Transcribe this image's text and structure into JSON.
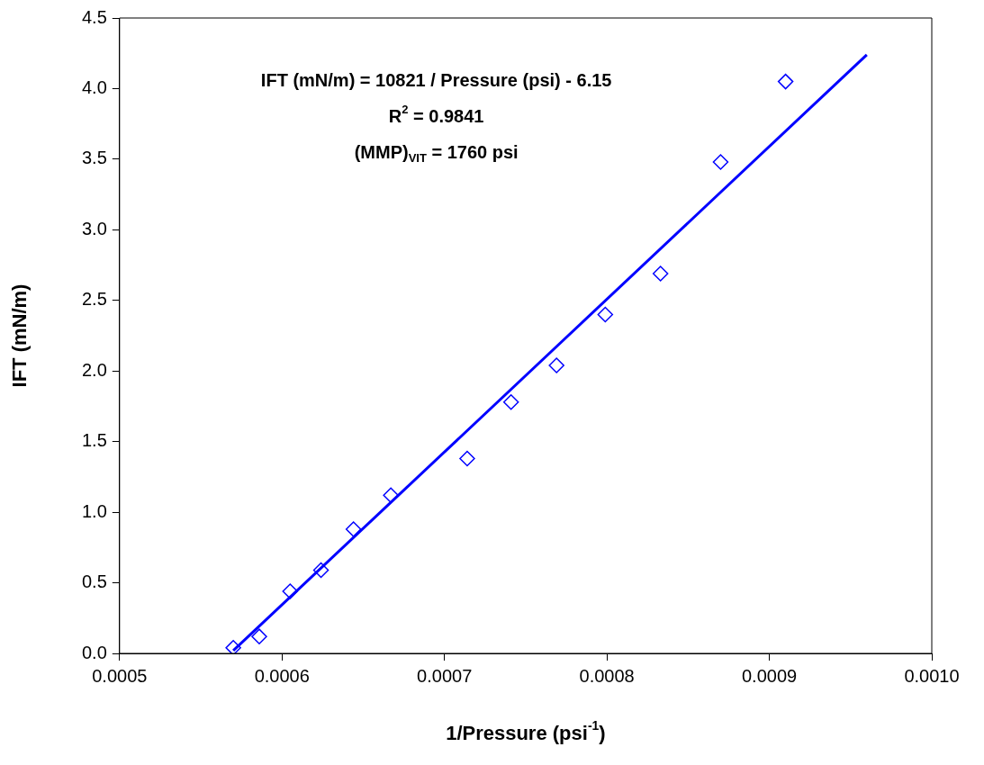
{
  "chart_data": {
    "type": "scatter",
    "xlabel": "1/Pressure (psi$^{-1}$)",
    "ylabel": "IFT (mN/m)",
    "annotations": [
      "IFT (mN/m) = 10821 / Pressure (psi) - 6.15",
      "R$^{2}$ = 0.9841",
      "(MMP)$_{VIT}$ = 1760 psi"
    ],
    "xlim": [
      0.0005,
      0.001
    ],
    "xticks": [
      {
        "value": 0.0005,
        "label": "0.0005"
      },
      {
        "value": 0.0006,
        "label": "0.0006"
      },
      {
        "value": 0.0007,
        "label": "0.0007"
      },
      {
        "value": 0.0008,
        "label": "0.0008"
      },
      {
        "value": 0.0009,
        "label": "0.0009"
      },
      {
        "value": 0.001,
        "label": "0.0010"
      }
    ],
    "ylim": [
      0,
      4.5
    ],
    "yticks": [
      {
        "value": 0,
        "label": "0.0"
      },
      {
        "value": 0.5,
        "label": "0.5"
      },
      {
        "value": 1,
        "label": "1.0"
      },
      {
        "value": 1.5,
        "label": "1.5"
      },
      {
        "value": 2,
        "label": "2.0"
      },
      {
        "value": 2.5,
        "label": "2.5"
      },
      {
        "value": 3,
        "label": "3.0"
      },
      {
        "value": 3.5,
        "label": "3.5"
      },
      {
        "value": 4,
        "label": "4.0"
      },
      {
        "value": 4.5,
        "label": "4.5"
      }
    ],
    "grid": false,
    "legend": false,
    "series": [
      {
        "type": "scatter",
        "color": "#0000ff",
        "marker": "diamond",
        "x": [
          0.00057,
          0.000586,
          0.000605,
          0.000624,
          0.000644,
          0.000667,
          0.000714,
          0.000741,
          0.000769,
          0.000799,
          0.000833,
          0.00087,
          0.00091
        ],
        "values": [
          0.04,
          0.12,
          0.44,
          0.59,
          0.88,
          1.12,
          1.38,
          1.78,
          2.04,
          2.4,
          2.69,
          3.48,
          4.05
        ]
      },
      {
        "type": "line",
        "color": "#0000ff",
        "marker": "none",
        "line_style": "solid",
        "x": [
          0.00057,
          0.00096
        ],
        "values": [
          0.02,
          4.24
        ]
      }
    ]
  }
}
